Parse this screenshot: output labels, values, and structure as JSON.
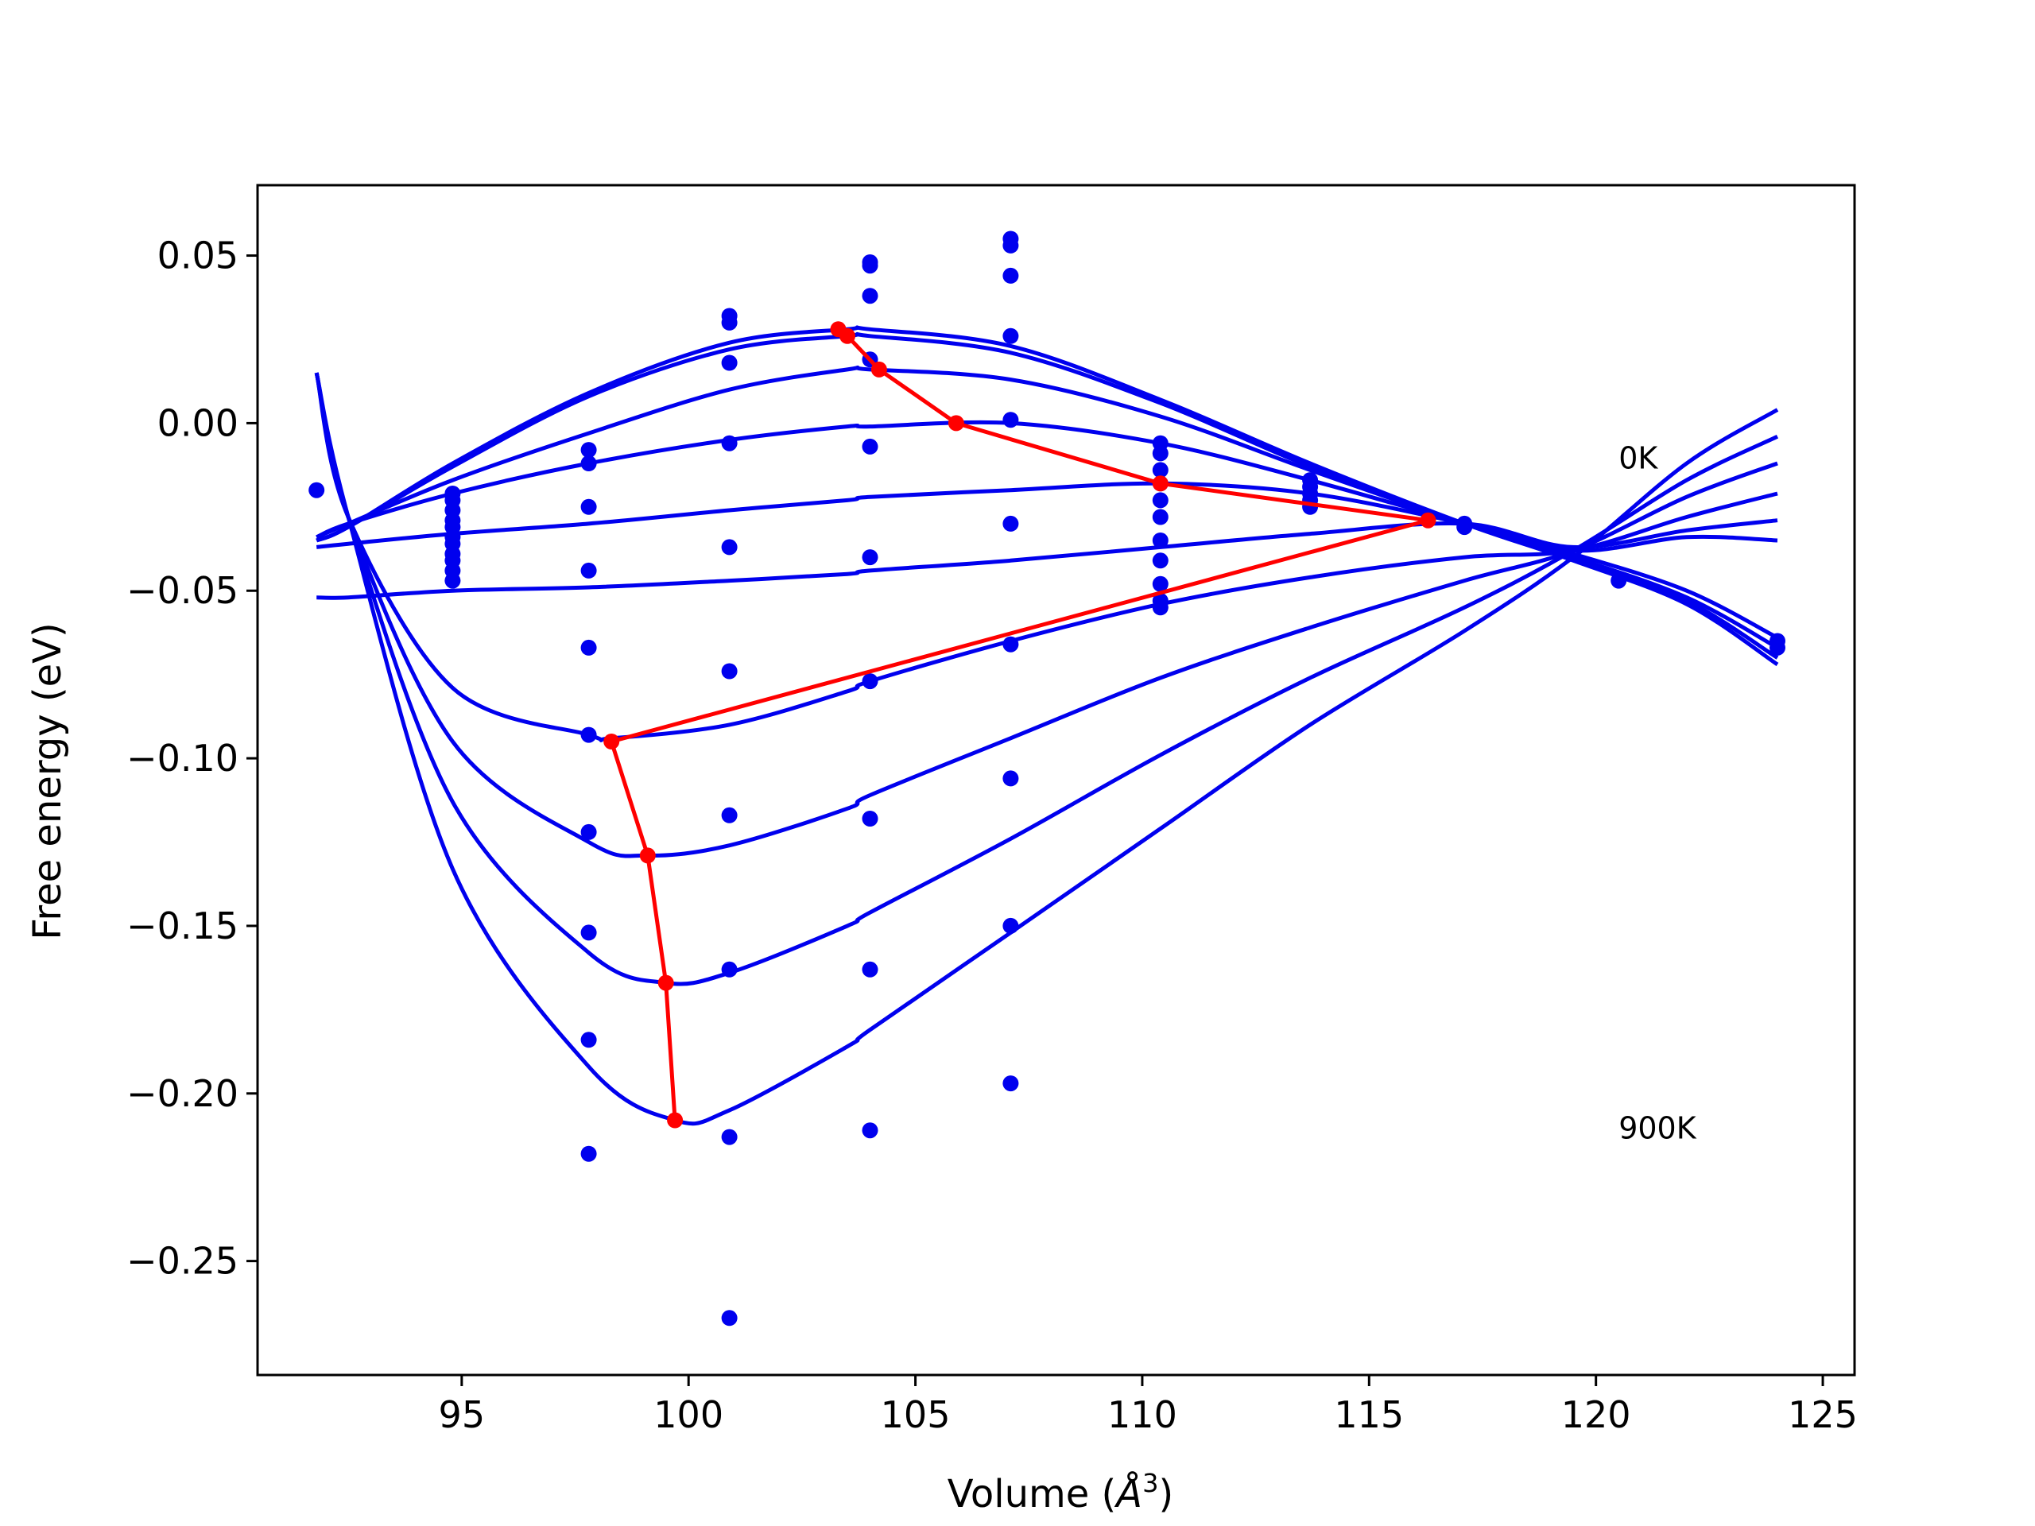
{
  "chart_data": {
    "type": "line",
    "xlabel": "Volume (",
    "xlabel_unit": "Å",
    "xlabel_exp": "3",
    "xlabel_close": ")",
    "ylabel": "Free energy (eV)",
    "xlim": [
      90.5,
      125.7
    ],
    "ylim": [
      -0.284,
      0.071
    ],
    "x_ticks": [
      95,
      100,
      105,
      110,
      115,
      120,
      125
    ],
    "x_tick_labels": [
      "95",
      "100",
      "105",
      "110",
      "115",
      "120",
      "125"
    ],
    "y_ticks": [
      0.05,
      0.0,
      -0.05,
      -0.1,
      -0.15,
      -0.2,
      -0.25
    ],
    "y_tick_labels": [
      "0.05",
      "0.00",
      "−0.05",
      "−0.10",
      "−0.15",
      "−0.20",
      "−0.25"
    ],
    "grid": false,
    "colors": {
      "curves": "#0000ee",
      "equilibrium": "#ff0000",
      "frame": "#000000"
    },
    "annotations": [
      {
        "text": "0K",
        "x": 120.5,
        "y": -0.0135
      },
      {
        "text": "900K",
        "x": 120.5,
        "y": -0.2135
      }
    ],
    "fit_curves": [
      {
        "x": [
          91.8,
          92.5,
          94.8,
          97.8,
          100.9,
          103.5,
          104.0,
          107.1,
          110.4,
          113.7,
          117.1,
          119.5,
          122.0,
          124.0
        ],
        "y": [
          -0.035,
          -0.031,
          -0.012,
          0.009,
          0.024,
          0.028,
          0.028,
          0.023,
          0.007,
          -0.012,
          -0.03,
          -0.041,
          -0.054,
          -0.072
        ]
      },
      {
        "x": [
          91.8,
          92.5,
          94.8,
          97.8,
          100.9,
          103.5,
          104.0,
          107.1,
          110.4,
          113.7,
          117.1,
          119.5,
          122.0,
          124.0
        ],
        "y": [
          -0.035,
          -0.031,
          -0.013,
          0.008,
          0.022,
          0.026,
          0.026,
          0.021,
          0.006,
          -0.013,
          -0.03,
          -0.04,
          -0.053,
          -0.07
        ]
      },
      {
        "x": [
          91.8,
          92.5,
          94.8,
          97.8,
          100.9,
          103.5,
          104.0,
          107.1,
          110.4,
          113.7,
          117.1,
          119.5,
          122.0,
          124.0
        ],
        "y": [
          -0.034,
          -0.03,
          -0.017,
          -0.003,
          0.01,
          0.016,
          0.016,
          0.013,
          0.002,
          -0.014,
          -0.03,
          -0.04,
          -0.052,
          -0.067
        ]
      },
      {
        "x": [
          91.8,
          92.5,
          94.8,
          97.8,
          100.9,
          103.5,
          104.0,
          107.1,
          110.4,
          113.7,
          117.1,
          119.5,
          122.0,
          124.0
        ],
        "y": [
          -0.034,
          -0.03,
          -0.021,
          -0.012,
          -0.005,
          -0.001,
          -0.001,
          0.0,
          -0.006,
          -0.017,
          -0.03,
          -0.039,
          -0.05,
          -0.064
        ]
      },
      {
        "x": [
          91.8,
          92.5,
          94.8,
          97.8,
          100.9,
          103.5,
          104.0,
          107.1,
          110.4,
          113.7,
          117.1,
          119.5,
          122.0,
          124.0
        ],
        "y": [
          -0.037,
          -0.036,
          -0.033,
          -0.03,
          -0.026,
          -0.023,
          -0.022,
          -0.02,
          -0.018,
          -0.021,
          -0.03,
          -0.038,
          -0.034,
          -0.035
        ]
      },
      {
        "x": [
          91.8,
          92.5,
          94.8,
          97.8,
          100.9,
          103.5,
          104.0,
          107.1,
          110.4,
          113.7,
          117.1,
          119.5,
          122.0,
          124.0
        ],
        "y": [
          -0.052,
          -0.052,
          -0.05,
          -0.049,
          -0.047,
          -0.045,
          -0.044,
          -0.041,
          -0.037,
          -0.033,
          -0.03,
          -0.037,
          -0.032,
          -0.029
        ]
      },
      {
        "x": [
          91.8,
          92.5,
          94.8,
          97.8,
          98.3,
          100.9,
          103.5,
          104.0,
          107.1,
          110.4,
          113.7,
          117.1,
          119.5,
          122.0,
          124.0
        ],
        "y": [
          0.015,
          -0.028,
          -0.079,
          -0.093,
          -0.094,
          -0.09,
          -0.08,
          -0.077,
          -0.065,
          -0.054,
          -0.046,
          -0.04,
          -0.038,
          -0.028,
          -0.021
        ]
      },
      {
        "x": [
          91.8,
          92.5,
          94.8,
          97.8,
          99.1,
          100.9,
          103.5,
          104.0,
          107.1,
          110.4,
          113.7,
          117.1,
          119.5,
          122.0,
          124.0
        ],
        "y": [
          0.015,
          -0.028,
          -0.095,
          -0.125,
          -0.129,
          -0.126,
          -0.115,
          -0.111,
          -0.094,
          -0.076,
          -0.061,
          -0.047,
          -0.038,
          -0.022,
          -0.012
        ]
      },
      {
        "x": [
          91.8,
          92.5,
          94.8,
          97.8,
          99.5,
          100.9,
          103.5,
          104.0,
          107.1,
          110.4,
          113.7,
          117.1,
          119.5,
          122.0,
          124.0
        ],
        "y": [
          0.015,
          -0.028,
          -0.113,
          -0.158,
          -0.167,
          -0.164,
          -0.15,
          -0.146,
          -0.124,
          -0.099,
          -0.076,
          -0.055,
          -0.038,
          -0.017,
          -0.004
        ]
      },
      {
        "x": [
          91.8,
          92.5,
          94.8,
          97.8,
          99.7,
          100.9,
          103.5,
          104.0,
          107.1,
          110.4,
          113.7,
          117.1,
          119.5,
          122.0,
          124.0
        ],
        "y": [
          0.015,
          -0.028,
          -0.133,
          -0.192,
          -0.208,
          -0.205,
          -0.186,
          -0.181,
          -0.152,
          -0.121,
          -0.09,
          -0.062,
          -0.04,
          -0.012,
          0.004
        ]
      }
    ],
    "points": [
      {
        "x": 91.8,
        "y": -0.02
      },
      {
        "x": 94.8,
        "y": -0.021
      },
      {
        "x": 94.8,
        "y": -0.023
      },
      {
        "x": 94.8,
        "y": -0.026
      },
      {
        "x": 94.8,
        "y": -0.029
      },
      {
        "x": 94.8,
        "y": -0.031
      },
      {
        "x": 94.8,
        "y": -0.034
      },
      {
        "x": 94.8,
        "y": -0.036
      },
      {
        "x": 94.8,
        "y": -0.039
      },
      {
        "x": 94.8,
        "y": -0.041
      },
      {
        "x": 94.8,
        "y": -0.044
      },
      {
        "x": 94.8,
        "y": -0.047
      },
      {
        "x": 97.8,
        "y": -0.008
      },
      {
        "x": 97.8,
        "y": -0.012
      },
      {
        "x": 97.8,
        "y": -0.025
      },
      {
        "x": 97.8,
        "y": -0.044
      },
      {
        "x": 97.8,
        "y": -0.067
      },
      {
        "x": 97.8,
        "y": -0.093
      },
      {
        "x": 97.8,
        "y": -0.122
      },
      {
        "x": 97.8,
        "y": -0.152
      },
      {
        "x": 97.8,
        "y": -0.184
      },
      {
        "x": 97.8,
        "y": -0.218
      },
      {
        "x": 100.9,
        "y": 0.032
      },
      {
        "x": 100.9,
        "y": 0.03
      },
      {
        "x": 100.9,
        "y": 0.018
      },
      {
        "x": 100.9,
        "y": -0.006
      },
      {
        "x": 100.9,
        "y": -0.037
      },
      {
        "x": 100.9,
        "y": -0.074
      },
      {
        "x": 100.9,
        "y": -0.117
      },
      {
        "x": 100.9,
        "y": -0.163
      },
      {
        "x": 100.9,
        "y": -0.213
      },
      {
        "x": 100.9,
        "y": -0.267
      },
      {
        "x": 104.0,
        "y": 0.048
      },
      {
        "x": 104.0,
        "y": 0.047
      },
      {
        "x": 104.0,
        "y": 0.038
      },
      {
        "x": 104.0,
        "y": 0.019
      },
      {
        "x": 104.0,
        "y": -0.007
      },
      {
        "x": 104.0,
        "y": -0.04
      },
      {
        "x": 104.0,
        "y": -0.077
      },
      {
        "x": 104.0,
        "y": -0.118
      },
      {
        "x": 104.0,
        "y": -0.163
      },
      {
        "x": 104.0,
        "y": -0.211
      },
      {
        "x": 107.1,
        "y": 0.055
      },
      {
        "x": 107.1,
        "y": 0.053
      },
      {
        "x": 107.1,
        "y": 0.044
      },
      {
        "x": 107.1,
        "y": 0.026
      },
      {
        "x": 107.1,
        "y": 0.001
      },
      {
        "x": 107.1,
        "y": -0.03
      },
      {
        "x": 107.1,
        "y": -0.066
      },
      {
        "x": 107.1,
        "y": -0.106
      },
      {
        "x": 107.1,
        "y": -0.15
      },
      {
        "x": 107.1,
        "y": -0.197
      },
      {
        "x": 110.4,
        "y": -0.006
      },
      {
        "x": 110.4,
        "y": -0.009
      },
      {
        "x": 110.4,
        "y": -0.014
      },
      {
        "x": 110.4,
        "y": -0.018
      },
      {
        "x": 110.4,
        "y": -0.023
      },
      {
        "x": 110.4,
        "y": -0.028
      },
      {
        "x": 110.4,
        "y": -0.035
      },
      {
        "x": 110.4,
        "y": -0.041
      },
      {
        "x": 110.4,
        "y": -0.048
      },
      {
        "x": 110.4,
        "y": -0.053
      },
      {
        "x": 110.4,
        "y": -0.055
      },
      {
        "x": 113.7,
        "y": -0.017
      },
      {
        "x": 113.7,
        "y": -0.019
      },
      {
        "x": 113.7,
        "y": -0.021
      },
      {
        "x": 113.7,
        "y": -0.023
      },
      {
        "x": 113.7,
        "y": -0.025
      },
      {
        "x": 117.1,
        "y": -0.03
      },
      {
        "x": 117.1,
        "y": -0.031
      },
      {
        "x": 120.5,
        "y": -0.047
      },
      {
        "x": 124.0,
        "y": -0.065
      },
      {
        "x": 124.0,
        "y": -0.067
      }
    ],
    "equilibrium": {
      "x": [
        103.3,
        103.5,
        104.2,
        105.9,
        110.4,
        116.3,
        98.3,
        99.1,
        99.5,
        99.7
      ],
      "y": [
        0.028,
        0.026,
        0.016,
        0.0,
        -0.018,
        -0.029,
        -0.095,
        -0.129,
        -0.167,
        -0.208
      ]
    }
  }
}
